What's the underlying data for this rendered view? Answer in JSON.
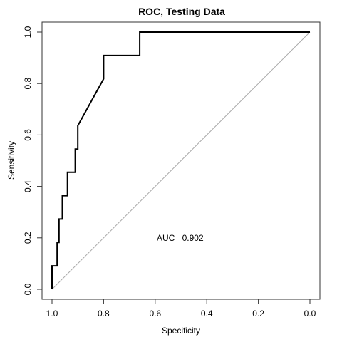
{
  "chart_data": {
    "type": "line",
    "title": "ROC, Testing Data",
    "xlabel": "Specificity",
    "ylabel": "Sensitivity",
    "xlim": [
      1.0,
      0.0
    ],
    "ylim": [
      0.0,
      1.0
    ],
    "x_reversed": true,
    "xticks": [
      1.0,
      0.8,
      0.6,
      0.4,
      0.2,
      0.0
    ],
    "xtick_labels": [
      "1.0",
      "0.8",
      "0.6",
      "0.4",
      "0.2",
      "0.0"
    ],
    "yticks": [
      0.0,
      0.2,
      0.4,
      0.6,
      0.8,
      1.0
    ],
    "ytick_labels": [
      "0.0",
      "0.2",
      "0.4",
      "0.6",
      "0.8",
      "1.0"
    ],
    "grid": false,
    "series": [
      {
        "color": "#000000",
        "specificity": [
          1.0,
          1.0,
          0.98,
          0.98,
          0.973,
          0.973,
          0.96,
          0.96,
          0.94,
          0.94,
          0.91,
          0.91,
          0.9,
          0.9,
          0.8,
          0.8,
          0.66,
          0.66,
          0.0
        ],
        "sensitivity": [
          0.0,
          0.091,
          0.091,
          0.182,
          0.182,
          0.273,
          0.273,
          0.364,
          0.364,
          0.455,
          0.455,
          0.545,
          0.545,
          0.636,
          0.818,
          0.909,
          0.909,
          1.0,
          1.0
        ]
      },
      {
        "color": "#aaaaaa",
        "specificity": [
          1.0,
          0.0
        ],
        "sensitivity": [
          0.0,
          1.0
        ]
      }
    ],
    "annotation": {
      "text": "AUC= 0.902",
      "x": 0.6,
      "y": 0.2
    }
  }
}
